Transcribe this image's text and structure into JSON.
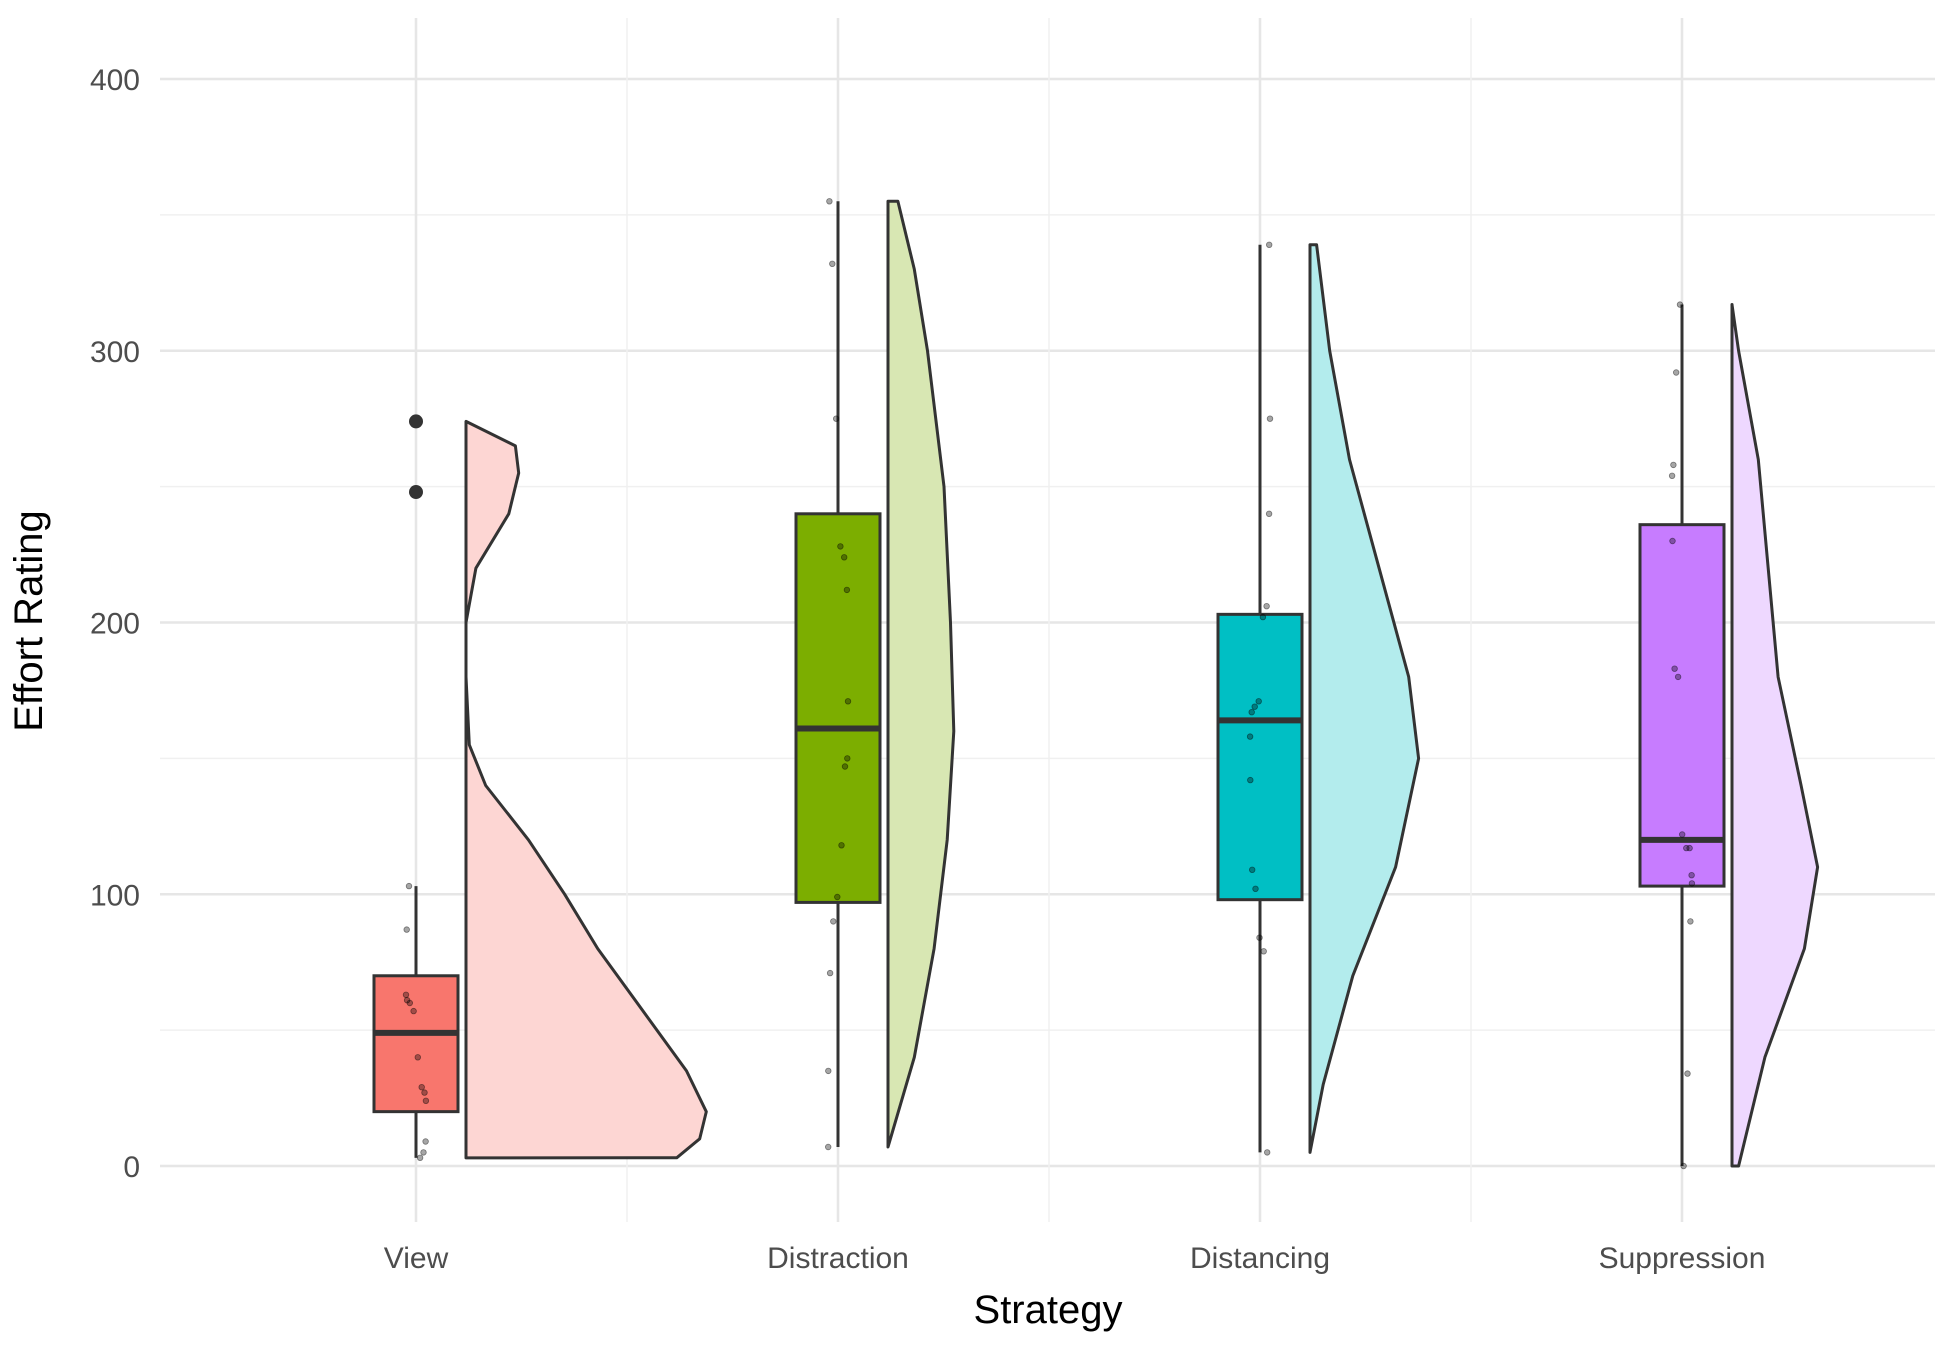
{
  "chart_data": {
    "type": "raincloud",
    "title": "",
    "xlabel": "Strategy",
    "ylabel": "Effort Rating",
    "ylim": [
      -20,
      405
    ],
    "y_ticks": [
      0,
      100,
      200,
      300,
      400
    ],
    "grid": true,
    "legend": "none",
    "categories": [
      "View",
      "Distraction",
      "Distancing",
      "Suppression"
    ],
    "groups": [
      {
        "name": "View",
        "color": "#F8766D",
        "box": {
          "q1": 20,
          "median": 49,
          "q3": 70,
          "whisker_low": 3,
          "whisker_high": 103
        },
        "outliers": [
          248,
          274
        ],
        "points": [
          3,
          5,
          9,
          24,
          27,
          29,
          40,
          57,
          60,
          61,
          63,
          87,
          103
        ],
        "density": {
          "min": 3,
          "max": 274,
          "profile": [
            [
              3,
              0.64
            ],
            [
              10,
              0.71
            ],
            [
              20,
              0.73
            ],
            [
              35,
              0.67
            ],
            [
              55,
              0.55
            ],
            [
              80,
              0.4
            ],
            [
              100,
              0.3
            ],
            [
              120,
              0.19
            ],
            [
              140,
              0.06
            ],
            [
              155,
              0.01
            ],
            [
              180,
              0.0
            ],
            [
              200,
              0.0
            ],
            [
              220,
              0.03
            ],
            [
              240,
              0.13
            ],
            [
              255,
              0.16
            ],
            [
              265,
              0.15
            ],
            [
              274,
              0.0
            ]
          ]
        }
      },
      {
        "name": "Distraction",
        "color": "#7CAE00",
        "box": {
          "q1": 97,
          "median": 161,
          "q3": 240,
          "whisker_low": 7,
          "whisker_high": 355
        },
        "outliers": [],
        "points": [
          7,
          35,
          71,
          90,
          99,
          118,
          147,
          150,
          171,
          212,
          224,
          228,
          275,
          332,
          355
        ],
        "density": {
          "min": 7,
          "max": 355,
          "profile": [
            [
              7,
              0.0
            ],
            [
              40,
              0.08
            ],
            [
              80,
              0.14
            ],
            [
              120,
              0.18
            ],
            [
              160,
              0.2
            ],
            [
              200,
              0.19
            ],
            [
              250,
              0.17
            ],
            [
              300,
              0.12
            ],
            [
              330,
              0.08
            ],
            [
              355,
              0.03
            ]
          ]
        }
      },
      {
        "name": "Distancing",
        "color": "#00BFC4",
        "box": {
          "q1": 98,
          "median": 164,
          "q3": 203,
          "whisker_low": 5,
          "whisker_high": 339
        },
        "outliers": [],
        "points": [
          5,
          79,
          84,
          102,
          109,
          142,
          158,
          167,
          169,
          171,
          202,
          206,
          240,
          275,
          339
        ],
        "density": {
          "min": 5,
          "max": 339,
          "profile": [
            [
              5,
              0.0
            ],
            [
              30,
              0.04
            ],
            [
              70,
              0.13
            ],
            [
              110,
              0.26
            ],
            [
              150,
              0.33
            ],
            [
              180,
              0.3
            ],
            [
              220,
              0.21
            ],
            [
              260,
              0.12
            ],
            [
              300,
              0.06
            ],
            [
              339,
              0.02
            ]
          ]
        }
      },
      {
        "name": "Suppression",
        "color": "#C77CFF",
        "box": {
          "q1": 103,
          "median": 120,
          "q3": 236,
          "whisker_low": 0,
          "whisker_high": 317
        },
        "outliers": [],
        "points": [
          0,
          34,
          90,
          104,
          107,
          117,
          117,
          122,
          180,
          183,
          230,
          254,
          258,
          292,
          317
        ],
        "density": {
          "min": 0,
          "max": 317,
          "profile": [
            [
              0,
              0.02
            ],
            [
              40,
              0.1
            ],
            [
              80,
              0.22
            ],
            [
              110,
              0.26
            ],
            [
              140,
              0.21
            ],
            [
              180,
              0.14
            ],
            [
              220,
              0.11
            ],
            [
              260,
              0.08
            ],
            [
              300,
              0.02
            ],
            [
              317,
              0.0
            ]
          ]
        }
      }
    ]
  }
}
